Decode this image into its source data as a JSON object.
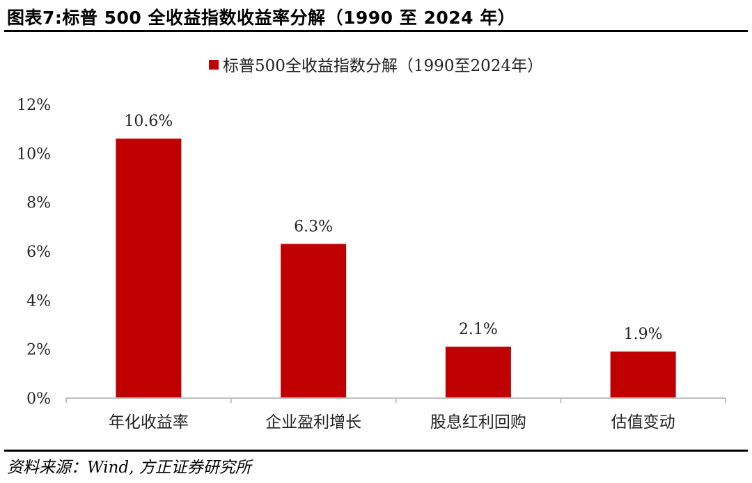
{
  "figure": {
    "title": "图表7:标普 500 全收益指数收益率分解（1990 至 2024 年）",
    "source": "资料来源：Wind, 方正证券研究所"
  },
  "colors": {
    "bar": "#C00000",
    "axis": "#BFBFBF",
    "text": "#222222"
  },
  "chart_data": {
    "type": "bar",
    "categories": [
      "年化收益率",
      "企业盈利增长",
      "股息红利回购",
      "估值变动"
    ],
    "series": [
      {
        "name": "标普500全收益指数分解（1990至2024年）",
        "values": [
          10.6,
          6.3,
          2.1,
          1.9
        ]
      }
    ],
    "data_labels": [
      "10.6%",
      "6.3%",
      "2.1%",
      "1.9%"
    ],
    "yticks": [
      0,
      2,
      4,
      6,
      8,
      10,
      12
    ],
    "ytick_labels": [
      "0%",
      "2%",
      "4%",
      "6%",
      "8%",
      "10%",
      "12%"
    ],
    "ylim": [
      0,
      12
    ],
    "grid": false,
    "legend_position": "top-center"
  }
}
